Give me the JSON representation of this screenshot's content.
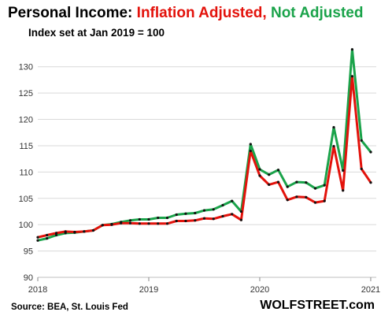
{
  "chart_data": {
    "type": "line",
    "title_parts": [
      {
        "text": "Personal Income: ",
        "color": "#000000"
      },
      {
        "text": "Inflation Adjusted,",
        "color": "#e3120b"
      },
      {
        "text": " Not Adjusted",
        "color": "#1aa34a"
      }
    ],
    "subtitle": "Index set at Jan 2019 = 100",
    "source": "Source: BEA, St. Louis Fed",
    "brand": "WOLFSTREET.com",
    "x_ticks": [
      "2018",
      "2019",
      "2020",
      "2021"
    ],
    "x_tick_values": [
      2018,
      2019,
      2020,
      2021
    ],
    "xlim": [
      2018,
      2021.05
    ],
    "y_ticks": [
      90,
      95,
      100,
      105,
      110,
      115,
      120,
      125,
      130
    ],
    "ylim": [
      90,
      134
    ],
    "grid": "horizontal",
    "marker_color": "#111111",
    "x": [
      2018.0,
      2018.083,
      2018.167,
      2018.25,
      2018.333,
      2018.417,
      2018.5,
      2018.583,
      2018.667,
      2018.75,
      2018.833,
      2018.917,
      2019.0,
      2019.083,
      2019.167,
      2019.25,
      2019.333,
      2019.417,
      2019.5,
      2019.583,
      2019.667,
      2019.75,
      2019.833,
      2019.917,
      2020.0,
      2020.083,
      2020.167,
      2020.25,
      2020.333,
      2020.417,
      2020.5,
      2020.583,
      2020.667,
      2020.75,
      2020.833,
      2020.917,
      2021.0
    ],
    "series": [
      {
        "name": "Not Adjusted",
        "color": "#1aa34a",
        "values": [
          97.0,
          97.4,
          98.0,
          98.4,
          98.5,
          98.7,
          98.9,
          99.9,
          100.1,
          100.5,
          100.8,
          101.0,
          101.0,
          101.3,
          101.3,
          101.9,
          102.1,
          102.2,
          102.7,
          102.9,
          103.7,
          104.5,
          102.5,
          115.3,
          110.5,
          109.5,
          110.4,
          107.2,
          108.1,
          108.0,
          106.9,
          107.5,
          118.5,
          110.3,
          133.3,
          116.0,
          113.8
        ]
      },
      {
        "name": "Inflation Adjusted",
        "color": "#e3120b",
        "values": [
          97.6,
          98.0,
          98.4,
          98.7,
          98.6,
          98.7,
          98.9,
          99.9,
          100.0,
          100.3,
          100.3,
          100.2,
          100.2,
          100.2,
          100.2,
          100.7,
          100.7,
          100.8,
          101.2,
          101.1,
          101.6,
          102.0,
          100.9,
          114.0,
          109.3,
          107.6,
          108.1,
          104.7,
          105.3,
          105.2,
          104.2,
          104.5,
          114.9,
          106.5,
          128.2,
          110.6,
          108.0
        ]
      }
    ]
  }
}
